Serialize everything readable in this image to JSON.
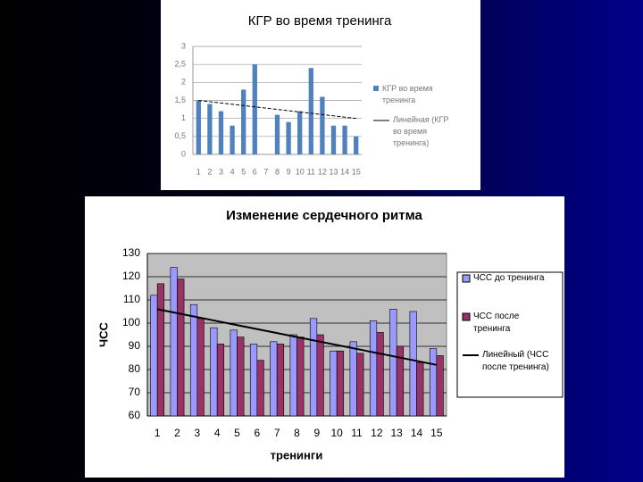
{
  "chart_data": [
    {
      "type": "bar",
      "title": "КГР во время тренинга",
      "categories": [
        "1",
        "2",
        "3",
        "4",
        "5",
        "6",
        "7",
        "8",
        "9",
        "10",
        "11",
        "12",
        "13",
        "14",
        "15"
      ],
      "series": [
        {
          "name": "КГР во время тренинга",
          "color": "#4f81bd",
          "values": [
            1.5,
            1.4,
            1.2,
            0.8,
            1.8,
            2.5,
            null,
            1.1,
            0.9,
            1.2,
            2.4,
            1.6,
            0.8,
            0.8,
            0.5
          ]
        },
        {
          "name": "Линейная (КГР во время тренинга)",
          "color": "#000000",
          "trend": [
            1.5,
            1.0
          ]
        }
      ],
      "ylim": [
        0,
        3
      ],
      "yticks": [
        0,
        {
          "value": 0.5,
          "label": "0,5"
        },
        1,
        {
          "value": 1.5,
          "label": "1,5"
        },
        2,
        {
          "value": 2.5,
          "label": "2,5"
        },
        3
      ],
      "grid": true
    },
    {
      "type": "bar",
      "title": "Изменение сердечного ритма",
      "y_label": "ЧСС",
      "x_label": "тренинги",
      "categories": [
        "1",
        "2",
        "3",
        "4",
        "5",
        "6",
        "7",
        "8",
        "9",
        "10",
        "11",
        "12",
        "13",
        "14",
        "15"
      ],
      "series": [
        {
          "name": "ЧСС до тренинга",
          "color": "#9999ff",
          "values": [
            112,
            124,
            108,
            98,
            97,
            91,
            92,
            95,
            102,
            88,
            92,
            101,
            106,
            105,
            89
          ]
        },
        {
          "name": "ЧСС после тренинга",
          "color": "#993366",
          "values": [
            117,
            119,
            102,
            91,
            94,
            84,
            91,
            94,
            95,
            88,
            87,
            96,
            90,
            83,
            86
          ]
        },
        {
          "name": "Линейный (ЧСС после тренинга)",
          "color": "#000000",
          "trend": [
            106,
            82
          ]
        }
      ],
      "ylim": [
        60,
        130
      ],
      "yticks": [
        60,
        70,
        80,
        90,
        100,
        110,
        120,
        130
      ],
      "grid": true
    }
  ]
}
